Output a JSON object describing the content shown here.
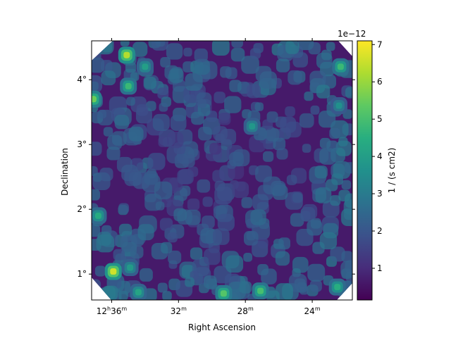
{
  "chart_data": {
    "type": "heatmap",
    "title": "",
    "xlabel": "Right Ascension",
    "ylabel": "Declination",
    "x_ticks": [
      {
        "label_main": "12",
        "label_h": "h",
        "label_min": "36",
        "label_m": "m",
        "ra_min": 36
      },
      {
        "label_main": "32",
        "label_h": "",
        "label_min": "",
        "label_m": "m",
        "ra_min": 32
      },
      {
        "label_main": "28",
        "label_h": "",
        "label_min": "",
        "label_m": "m",
        "ra_min": 28
      },
      {
        "label_main": "24",
        "label_h": "",
        "label_min": "",
        "label_m": "m",
        "ra_min": 24
      }
    ],
    "xlim_ra_minutes": [
      37.2,
      21.6
    ],
    "y_ticks": [
      {
        "label": "1°",
        "value": 1
      },
      {
        "label": "2°",
        "value": 2
      },
      {
        "label": "3°",
        "value": 3
      },
      {
        "label": "4°",
        "value": 4
      }
    ],
    "ylim_deg": [
      0.6,
      4.6
    ],
    "colorbar": {
      "label": "1 / (s cm2)",
      "offset_text": "1e−12",
      "ticks": [
        "1",
        "2",
        "3",
        "4",
        "5",
        "6",
        "7"
      ],
      "tick_values": [
        1,
        2,
        3,
        4,
        5,
        6,
        7
      ],
      "range": [
        0.15,
        7.1
      ],
      "colormap": "viridis"
    },
    "hotspots": [
      {
        "ra_min": 35.1,
        "dec": 4.38,
        "value": 6.3
      },
      {
        "ra_min": 37.1,
        "dec": 3.7,
        "value": 5.5
      },
      {
        "ra_min": 35.9,
        "dec": 1.04,
        "value": 6.6
      },
      {
        "ra_min": 29.3,
        "dec": 0.7,
        "value": 5.2
      },
      {
        "ra_min": 27.1,
        "dec": 0.74,
        "value": 5.0
      },
      {
        "ra_min": 22.3,
        "dec": 4.2,
        "value": 4.8
      },
      {
        "ra_min": 22.5,
        "dec": 0.8,
        "value": 4.5
      },
      {
        "ra_min": 36.8,
        "dec": 1.9,
        "value": 4.4
      },
      {
        "ra_min": 35.0,
        "dec": 3.9,
        "value": 4.8
      },
      {
        "ra_min": 34.0,
        "dec": 4.2,
        "value": 4.0
      },
      {
        "ra_min": 27.6,
        "dec": 3.28,
        "value": 3.8
      },
      {
        "ra_min": 22.4,
        "dec": 3.6,
        "value": 3.6
      },
      {
        "ra_min": 34.4,
        "dec": 0.72,
        "value": 4.2
      },
      {
        "ra_min": 34.9,
        "dec": 1.1,
        "value": 3.9
      }
    ]
  }
}
